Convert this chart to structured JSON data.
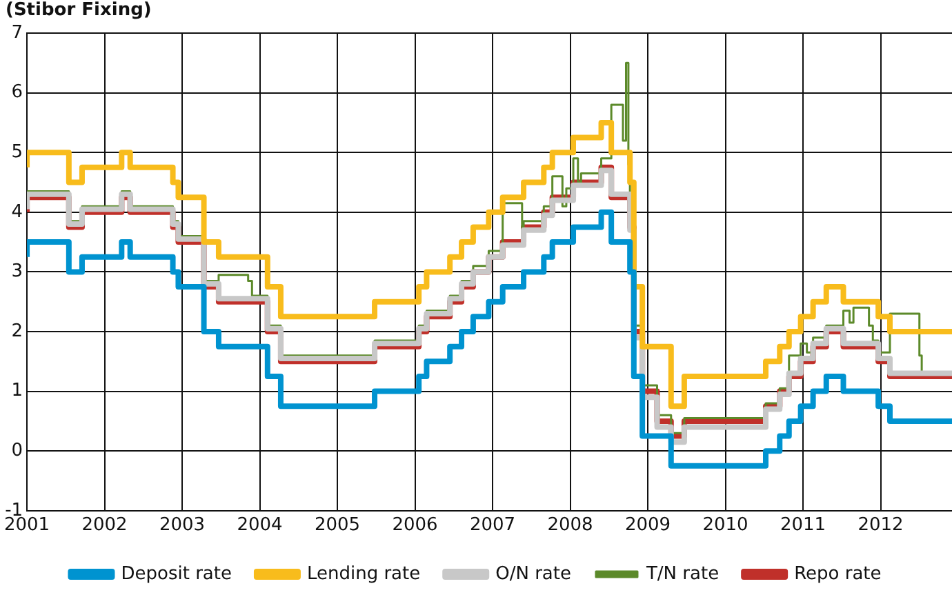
{
  "chart_data": {
    "type": "step",
    "title": "(Stibor Fixing)",
    "xlim": [
      2001,
      2012.92
    ],
    "xticks": [
      2001,
      2002,
      2003,
      2004,
      2005,
      2006,
      2007,
      2008,
      2009,
      2010,
      2011,
      2012
    ],
    "ylim": [
      -1,
      7
    ],
    "yticks": [
      -1,
      0,
      1,
      2,
      3,
      4,
      5,
      6,
      7
    ],
    "grid": true,
    "legend": "bottom",
    "series": [
      {
        "name": "Deposit rate",
        "color": "#0093d0",
        "x": [
          2001,
          2001.54,
          2001.71,
          2002.22,
          2002.33,
          2002.88,
          2002.95,
          2003.28,
          2003.47,
          2004.1,
          2004.27,
          2005.48,
          2006.05,
          2006.15,
          2006.45,
          2006.6,
          2006.75,
          2006.95,
          2007.13,
          2007.4,
          2007.66,
          2007.77,
          2008.04,
          2008.4,
          2008.53,
          2008.77,
          2008.82,
          2008.93,
          2009.12,
          2009.3,
          2009.47,
          2010.52,
          2010.7,
          2010.82,
          2010.97,
          2011.13,
          2011.3,
          2011.52,
          2011.97,
          2012.12,
          2012.72,
          2012.92
        ],
        "values": [
          3.25,
          3.5,
          3.0,
          3.25,
          3.5,
          3.25,
          3.0,
          2.75,
          2.0,
          1.75,
          1.25,
          0.75,
          1.0,
          1.25,
          1.5,
          1.75,
          2.0,
          2.25,
          2.5,
          2.75,
          3.0,
          3.25,
          3.5,
          3.75,
          4.0,
          3.5,
          3.0,
          1.25,
          0.25,
          0.25,
          -0.25,
          -0.25,
          0.0,
          0.25,
          0.5,
          0.75,
          1.0,
          1.25,
          1.0,
          0.75,
          0.5,
          0.5
        ]
      },
      {
        "name": "Lending rate",
        "color": "#f8bc1c",
        "x": [
          2001,
          2001.54,
          2001.71,
          2002.22,
          2002.33,
          2002.88,
          2002.95,
          2003.28,
          2003.47,
          2004.1,
          2004.27,
          2005.48,
          2006.05,
          2006.15,
          2006.45,
          2006.6,
          2006.75,
          2006.95,
          2007.13,
          2007.4,
          2007.66,
          2007.77,
          2008.04,
          2008.4,
          2008.53,
          2008.77,
          2008.82,
          2008.93,
          2009.12,
          2009.3,
          2009.47,
          2010.52,
          2010.7,
          2010.82,
          2010.97,
          2011.13,
          2011.3,
          2011.52,
          2011.97,
          2012.12,
          2012.72,
          2012.92
        ],
        "values": [
          4.75,
          5.0,
          4.5,
          4.75,
          5.0,
          4.75,
          4.5,
          4.25,
          3.5,
          3.25,
          2.75,
          2.25,
          2.5,
          2.75,
          3.0,
          3.25,
          3.5,
          3.75,
          4.0,
          4.25,
          4.5,
          4.75,
          5.0,
          5.25,
          5.5,
          5.0,
          4.5,
          2.75,
          1.75,
          1.75,
          0.75,
          1.25,
          1.5,
          1.75,
          2.0,
          2.25,
          2.5,
          2.75,
          2.5,
          2.25,
          2.0,
          2.0
        ]
      },
      {
        "name": "O/N rate",
        "color": "#c8c8c8",
        "x": [
          2001,
          2001.54,
          2001.71,
          2002.22,
          2002.33,
          2002.88,
          2002.95,
          2003.28,
          2003.47,
          2004.1,
          2004.27,
          2005.48,
          2006.05,
          2006.15,
          2006.45,
          2006.6,
          2006.75,
          2006.95,
          2007.13,
          2007.4,
          2007.66,
          2007.77,
          2008.04,
          2008.4,
          2008.53,
          2008.77,
          2008.82,
          2008.93,
          2009.12,
          2009.3,
          2009.47,
          2010.52,
          2010.7,
          2010.82,
          2010.97,
          2011.13,
          2011.3,
          2011.52,
          2011.97,
          2012.12,
          2012.72,
          2012.92
        ],
        "values": [
          4.05,
          4.3,
          3.8,
          4.05,
          4.3,
          4.05,
          3.8,
          3.55,
          2.8,
          2.55,
          2.05,
          1.55,
          1.8,
          2.05,
          2.3,
          2.55,
          2.8,
          3.0,
          3.25,
          3.45,
          3.7,
          3.95,
          4.2,
          4.45,
          4.7,
          4.3,
          3.7,
          1.9,
          0.9,
          0.4,
          0.15,
          0.4,
          0.7,
          0.95,
          1.3,
          1.55,
          1.8,
          2.05,
          1.8,
          1.55,
          1.3,
          1.3
        ]
      },
      {
        "name": "T/N rate",
        "color": "#5c8a2a",
        "x": [
          2001,
          2001.54,
          2001.71,
          2002.22,
          2002.33,
          2002.88,
          2002.95,
          2003.28,
          2003.47,
          2003.85,
          2003.9,
          2004.1,
          2004.27,
          2005.48,
          2006.05,
          2006.15,
          2006.45,
          2006.6,
          2006.75,
          2006.95,
          2007.13,
          2007.38,
          2007.4,
          2007.66,
          2007.77,
          2007.9,
          2007.95,
          2008.04,
          2008.1,
          2008.14,
          2008.4,
          2008.53,
          2008.68,
          2008.72,
          2008.75,
          2008.77,
          2008.82,
          2008.93,
          2009.12,
          2009.3,
          2009.47,
          2010.52,
          2010.7,
          2010.82,
          2010.97,
          2011.05,
          2011.13,
          2011.3,
          2011.52,
          2011.6,
          2011.65,
          2011.85,
          2011.9,
          2011.97,
          2012.12,
          2012.5,
          2012.53,
          2012.72,
          2012.92
        ],
        "values": [
          4.1,
          4.35,
          3.85,
          4.1,
          4.35,
          4.1,
          3.85,
          3.6,
          2.85,
          2.95,
          2.85,
          2.6,
          2.1,
          1.6,
          1.85,
          2.1,
          2.35,
          2.6,
          2.85,
          3.1,
          3.35,
          4.15,
          3.6,
          3.85,
          4.1,
          4.6,
          4.1,
          4.4,
          4.9,
          4.5,
          4.65,
          4.9,
          5.8,
          5.2,
          6.5,
          4.8,
          3.9,
          2.1,
          1.1,
          0.6,
          0.3,
          0.55,
          0.8,
          1.05,
          1.6,
          1.8,
          1.65,
          1.9,
          2.1,
          2.35,
          2.15,
          2.4,
          2.1,
          1.85,
          1.65,
          2.3,
          1.6,
          1.3,
          1.3
        ]
      },
      {
        "name": "Repo rate",
        "color": "#c0302a",
        "x": [
          2001,
          2001.54,
          2001.71,
          2002.22,
          2002.33,
          2002.88,
          2002.95,
          2003.28,
          2003.47,
          2004.1,
          2004.27,
          2005.48,
          2006.05,
          2006.15,
          2006.45,
          2006.6,
          2006.75,
          2006.95,
          2007.13,
          2007.4,
          2007.66,
          2007.77,
          2008.04,
          2008.4,
          2008.53,
          2008.77,
          2008.82,
          2008.93,
          2009.12,
          2009.3,
          2009.47,
          2010.52,
          2010.7,
          2010.82,
          2010.97,
          2011.13,
          2011.3,
          2011.52,
          2011.97,
          2012.12,
          2012.72,
          2012.92
        ],
        "values": [
          4.0,
          4.25,
          3.75,
          4.0,
          4.25,
          4.0,
          3.75,
          3.5,
          2.75,
          2.5,
          2.0,
          1.5,
          1.75,
          2.0,
          2.25,
          2.5,
          2.75,
          3.0,
          3.25,
          3.5,
          3.75,
          4.0,
          4.25,
          4.5,
          4.75,
          4.25,
          3.75,
          2.0,
          1.0,
          0.5,
          0.25,
          0.5,
          0.75,
          1.0,
          1.25,
          1.5,
          1.75,
          2.0,
          1.75,
          1.5,
          1.25,
          1.25
        ]
      }
    ]
  }
}
